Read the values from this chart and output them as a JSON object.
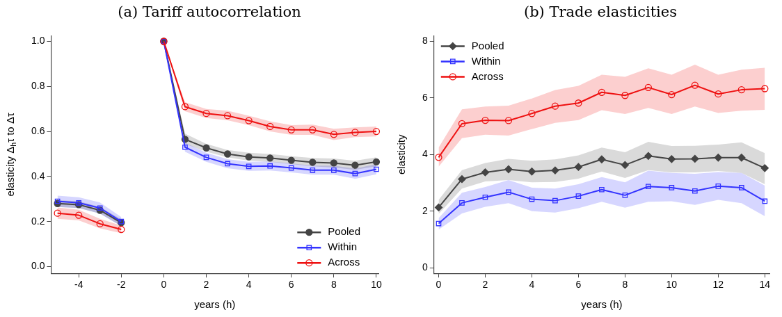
{
  "chart_data": [
    {
      "type": "line",
      "title": "(a) Tariff autocorrelation",
      "xlabel": "years (h)",
      "ylabel": "elasticity Δ$_{h}$τ to Δτ",
      "legend": "bottom right",
      "grid": false,
      "x": [
        -5,
        -4,
        -3,
        -2,
        -1,
        0,
        1,
        2,
        3,
        4,
        5,
        6,
        7,
        8,
        9,
        10
      ],
      "xlim": [
        -5.3,
        10.1
      ],
      "xticks": [
        -4,
        -2,
        0,
        2,
        4,
        6,
        8,
        10
      ],
      "ylim": [
        -0.03,
        1.025
      ],
      "yticks": [
        {
          "value": 0,
          "label": "0.0"
        },
        {
          "value": 0.2,
          "label": "0.2"
        },
        {
          "value": 0.4,
          "label": "0.4"
        },
        {
          "value": 0.6,
          "label": "0.6"
        },
        {
          "value": 0.8,
          "label": "0.8"
        },
        {
          "value": 1,
          "label": "1.0"
        }
      ],
      "series": [
        {
          "name": "Pooled",
          "color": "#444444",
          "marker": "circle",
          "values": [
            0.28,
            0.275,
            0.25,
            0.195,
            null,
            1.0,
            0.565,
            0.527,
            0.5,
            0.487,
            0.482,
            0.472,
            0.463,
            0.46,
            0.45,
            0.465
          ],
          "lower": [
            0.265,
            0.26,
            0.235,
            0.18,
            null,
            1.0,
            0.545,
            0.51,
            0.485,
            0.47,
            0.465,
            0.455,
            0.445,
            0.44,
            0.43,
            0.445
          ],
          "upper": [
            0.295,
            0.29,
            0.265,
            0.21,
            null,
            1.0,
            0.59,
            0.545,
            0.518,
            0.505,
            0.5,
            0.49,
            0.482,
            0.48,
            0.47,
            0.485
          ]
        },
        {
          "name": "Within",
          "color": "#3333ff",
          "marker": "square",
          "values": [
            0.29,
            0.283,
            0.26,
            0.2,
            null,
            1.0,
            0.53,
            0.485,
            0.457,
            0.445,
            0.447,
            0.438,
            0.428,
            0.428,
            0.413,
            0.432
          ],
          "lower": [
            0.265,
            0.26,
            0.235,
            0.18,
            null,
            1.0,
            0.51,
            0.465,
            0.437,
            0.425,
            0.427,
            0.418,
            0.408,
            0.408,
            0.39,
            0.41
          ],
          "upper": [
            0.315,
            0.308,
            0.285,
            0.22,
            null,
            1.0,
            0.55,
            0.505,
            0.477,
            0.465,
            0.467,
            0.458,
            0.448,
            0.448,
            0.435,
            0.455
          ]
        },
        {
          "name": "Across",
          "color": "#ee1111",
          "marker": "circle_open",
          "values": [
            0.237,
            0.228,
            0.19,
            0.165,
            null,
            1.0,
            0.71,
            0.68,
            0.67,
            0.648,
            0.622,
            0.607,
            0.607,
            0.587,
            0.596,
            0.6
          ],
          "lower": [
            0.212,
            0.205,
            0.17,
            0.148,
            null,
            1.0,
            0.69,
            0.66,
            0.65,
            0.628,
            0.6,
            0.585,
            0.585,
            0.562,
            0.575,
            0.578
          ],
          "upper": [
            0.262,
            0.252,
            0.212,
            0.182,
            null,
            1.0,
            0.73,
            0.7,
            0.692,
            0.67,
            0.645,
            0.628,
            0.63,
            0.612,
            0.618,
            0.622
          ]
        }
      ]
    },
    {
      "type": "line",
      "title": "(b) Trade elasticities",
      "xlabel": "years (h)",
      "ylabel": "elasticity",
      "legend": "top left",
      "grid": false,
      "x": [
        0,
        1,
        2,
        3,
        4,
        5,
        6,
        7,
        8,
        9,
        10,
        11,
        12,
        13,
        14
      ],
      "xlim": [
        -0.2,
        14.2
      ],
      "xticks": [
        0,
        2,
        4,
        6,
        8,
        10,
        12,
        14
      ],
      "ylim": [
        -0.2,
        8.2
      ],
      "yticks": [
        0,
        2,
        4,
        6,
        8
      ],
      "series": [
        {
          "name": "Pooled",
          "color": "#444444",
          "marker": "diamond",
          "values": [
            2.13,
            3.13,
            3.37,
            3.48,
            3.4,
            3.44,
            3.56,
            3.83,
            3.63,
            3.95,
            3.84,
            3.85,
            3.89,
            3.89,
            3.52
          ],
          "lower": [
            1.9,
            2.8,
            3.05,
            3.1,
            3.02,
            3.03,
            3.15,
            3.4,
            3.17,
            3.45,
            3.37,
            3.37,
            3.42,
            3.35,
            2.95
          ],
          "upper": [
            2.4,
            3.45,
            3.7,
            3.85,
            3.78,
            3.83,
            3.97,
            4.25,
            4.08,
            4.45,
            4.3,
            4.31,
            4.35,
            4.43,
            4.05
          ]
        },
        {
          "name": "Within",
          "color": "#3333ff",
          "marker": "square",
          "values": [
            1.56,
            2.29,
            2.49,
            2.67,
            2.42,
            2.37,
            2.53,
            2.76,
            2.56,
            2.87,
            2.83,
            2.71,
            2.88,
            2.83,
            2.35
          ],
          "lower": [
            1.35,
            1.92,
            2.15,
            2.28,
            2.0,
            1.95,
            2.1,
            2.33,
            2.12,
            2.33,
            2.35,
            2.22,
            2.4,
            2.28,
            1.82
          ],
          "upper": [
            1.75,
            2.65,
            2.85,
            3.1,
            2.83,
            2.8,
            2.95,
            3.2,
            3.02,
            3.43,
            3.35,
            3.32,
            3.38,
            3.35,
            2.9
          ]
        },
        {
          "name": "Across",
          "color": "#ee1111",
          "marker": "circle_open",
          "values": [
            3.9,
            5.09,
            5.21,
            5.2,
            5.45,
            5.71,
            5.82,
            6.2,
            6.09,
            6.37,
            6.12,
            6.45,
            6.14,
            6.29,
            6.33
          ],
          "lower": [
            3.57,
            4.58,
            4.7,
            4.67,
            4.9,
            5.12,
            5.22,
            5.57,
            5.43,
            5.65,
            5.43,
            5.7,
            5.47,
            5.55,
            5.58
          ],
          "upper": [
            4.25,
            5.6,
            5.7,
            5.73,
            5.98,
            6.28,
            6.43,
            6.82,
            6.75,
            7.05,
            6.82,
            7.18,
            6.82,
            7.0,
            7.07
          ]
        }
      ]
    }
  ]
}
